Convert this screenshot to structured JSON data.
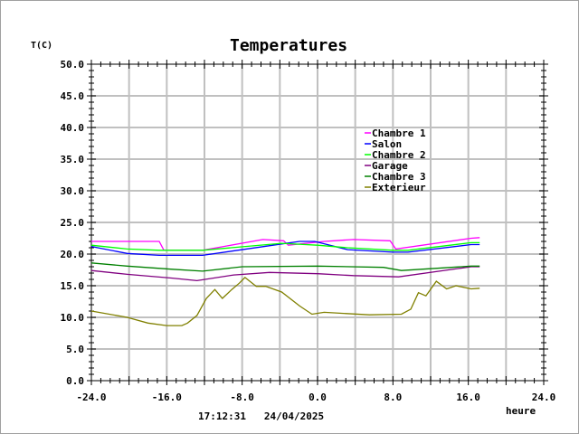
{
  "chart_data": {
    "type": "line",
    "title": "Temperatures",
    "xlabel": "heure",
    "ylabel": "T(C)",
    "timestamp": "17:12:31   24/04/2025",
    "xlim": [
      -24,
      24
    ],
    "ylim": [
      0,
      50
    ],
    "xticks": [
      "-24.0",
      "-16.0",
      "-8.0",
      "0.0",
      "8.0",
      "16.0",
      "24.0"
    ],
    "yticks": [
      "0.0",
      "5.0",
      "10.0",
      "15.0",
      "20.0",
      "25.0",
      "30.0",
      "35.0",
      "40.0",
      "45.0",
      "50.0"
    ],
    "grid": true,
    "legend_position": "top-right",
    "series": [
      {
        "name": "Chambre 1",
        "color": "#ff00ff",
        "x": [
          -24,
          -16.8,
          -16.3,
          -12.2,
          -5.8,
          -3.6,
          -3.1,
          0.7,
          3.8,
          7.7,
          8.3,
          16.3,
          17.2
        ],
        "y": [
          22.0,
          22.0,
          20.6,
          20.6,
          22.3,
          22.1,
          21.4,
          22.0,
          22.3,
          22.1,
          20.8,
          22.5,
          22.6
        ]
      },
      {
        "name": "Salon",
        "color": "#0000ff",
        "x": [
          -24,
          -20.2,
          -16.8,
          -12.2,
          -3.8,
          -1.9,
          -0.3,
          3.2,
          8.0,
          9.6,
          16.3,
          17.2
        ],
        "y": [
          21.2,
          20.1,
          19.8,
          19.8,
          21.6,
          22.0,
          22.0,
          20.7,
          20.3,
          20.3,
          21.5,
          21.5
        ]
      },
      {
        "name": "Chambre 2",
        "color": "#00ff00",
        "x": [
          -24,
          -20.2,
          -16.8,
          -12.2,
          -3.8,
          0.0,
          3.2,
          8.0,
          9.6,
          16.3,
          17.2
        ],
        "y": [
          21.4,
          20.8,
          20.6,
          20.6,
          21.7,
          21.4,
          21.0,
          20.6,
          20.6,
          21.8,
          21.8
        ]
      },
      {
        "name": "Garage",
        "color": "#800080",
        "x": [
          -24,
          -20.2,
          -15.4,
          -12.8,
          -8.9,
          -5.1,
          0.0,
          3.8,
          8.6,
          16.3,
          17.2
        ],
        "y": [
          17.4,
          16.8,
          16.2,
          15.8,
          16.7,
          17.1,
          16.9,
          16.6,
          16.4,
          18.0,
          18.0
        ]
      },
      {
        "name": "Chambre 3",
        "color": "#008000",
        "x": [
          -24,
          -20.2,
          -15.4,
          -12.2,
          -8.0,
          0.0,
          7.0,
          8.9,
          16.3,
          17.2
        ],
        "y": [
          18.6,
          18.1,
          17.6,
          17.3,
          18.0,
          18.1,
          17.9,
          17.4,
          18.1,
          18.1
        ]
      },
      {
        "name": "Exterieur",
        "color": "#808000",
        "x": [
          -24,
          -20.2,
          -18,
          -16,
          -14.4,
          -13.8,
          -12.8,
          -11.8,
          -10.9,
          -10.1,
          -9.1,
          -8.3,
          -7.7,
          -6.5,
          -5.5,
          -3.8,
          -1.9,
          -0.6,
          0.7,
          5.5,
          8.9,
          9.9,
          10.7,
          11.5,
          12.6,
          13.7,
          14.7,
          16.3,
          17.2
        ],
        "y": [
          11.0,
          10.0,
          9.1,
          8.7,
          8.7,
          9.1,
          10.3,
          13.0,
          14.4,
          13.0,
          14.4,
          15.4,
          16.3,
          14.9,
          14.9,
          14.0,
          11.8,
          10.5,
          10.8,
          10.4,
          10.5,
          11.3,
          13.9,
          13.4,
          15.7,
          14.5,
          15.0,
          14.5,
          14.6
        ]
      }
    ]
  }
}
